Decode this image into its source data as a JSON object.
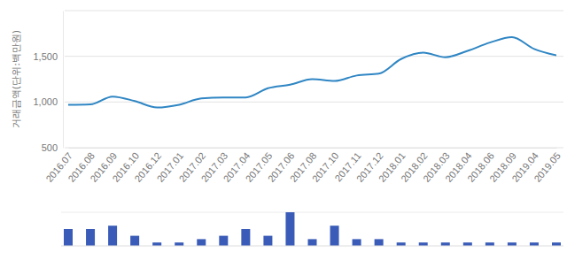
{
  "chart_data": [
    {
      "type": "line",
      "y_label": "거래금액(단위:백만원)",
      "categories": [
        "2016.07",
        "2016.08",
        "2016.09",
        "2016.10",
        "2016.12",
        "2017.01",
        "2017.02",
        "2017.03",
        "2017.04",
        "2017.05",
        "2017.06",
        "2017.08",
        "2017.10",
        "2017.11",
        "2017.12",
        "2018.01",
        "2018.02",
        "2018.03",
        "2018.04",
        "2018.06",
        "2018.09",
        "2019.04",
        "2019.05"
      ],
      "values": [
        970,
        975,
        1060,
        1010,
        940,
        970,
        1040,
        1050,
        1050,
        1150,
        1190,
        1250,
        1230,
        1290,
        1310,
        1470,
        1540,
        1490,
        1560,
        1650,
        1710,
        1580,
        1510
      ],
      "color": "#2f86c4",
      "ylim": [
        500,
        2000
      ],
      "yticks": [
        500,
        {
          "value": 1000,
          "label": "1,000"
        },
        {
          "value": 1500,
          "label": "1,500"
        }
      ],
      "grid": true
    },
    {
      "type": "bar",
      "categories": [
        "2016.07",
        "2016.08",
        "2016.09",
        "2016.10",
        "2016.12",
        "2017.01",
        "2017.02",
        "2017.03",
        "2017.04",
        "2017.05",
        "2017.06",
        "2017.08",
        "2017.10",
        "2017.11",
        "2017.12",
        "2018.01",
        "2018.02",
        "2018.03",
        "2018.04",
        "2018.06",
        "2018.09",
        "2019.04",
        "2019.05"
      ],
      "values": [
        5,
        5,
        6,
        3,
        1,
        1,
        2,
        3,
        5,
        3,
        10,
        2,
        6,
        2,
        2,
        1,
        1,
        1,
        1,
        1,
        1,
        1,
        1
      ],
      "color": "#3a5cb8",
      "ylim": [
        0,
        10
      ],
      "tick_labels": false
    }
  ]
}
